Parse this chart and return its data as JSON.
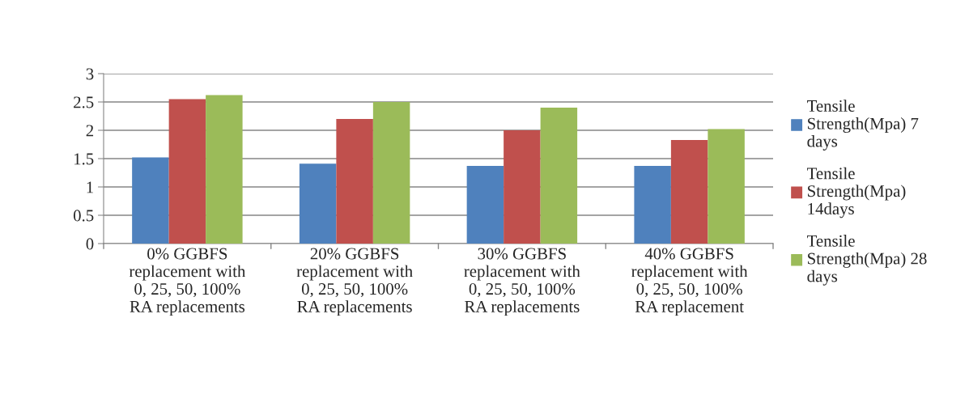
{
  "chart_data": {
    "type": "bar",
    "categories": [
      "0% GGBFS\nreplacement with\n0, 25, 50, 100%\nRA replacements",
      "20% GGBFS\nreplacement with\n0, 25, 50, 100%\nRA replacements",
      "30% GGBFS\nreplacement with\n0, 25, 50, 100%\nRA replacements",
      "40% GGBFS\nreplacement with\n0, 25, 50, 100%\nRA replacement"
    ],
    "series": [
      {
        "name": "Tensile\nStrength(Mpa) 7\ndays",
        "color": "#4f81bd",
        "values": [
          1.52,
          1.41,
          1.37,
          1.37
        ]
      },
      {
        "name": "Tensile\nStrength(Mpa)\n14days",
        "color": "#c0504d",
        "values": [
          2.55,
          2.2,
          2.0,
          1.83
        ]
      },
      {
        "name": "Tensile\nStrength(Mpa) 28\ndays",
        "color": "#9bbb59",
        "values": [
          2.62,
          2.5,
          2.4,
          2.02
        ]
      }
    ],
    "ylim": [
      0,
      3
    ],
    "yticks": [
      0,
      0.5,
      1,
      1.5,
      2,
      2.5,
      3
    ],
    "grid": "y",
    "legend": "right"
  }
}
